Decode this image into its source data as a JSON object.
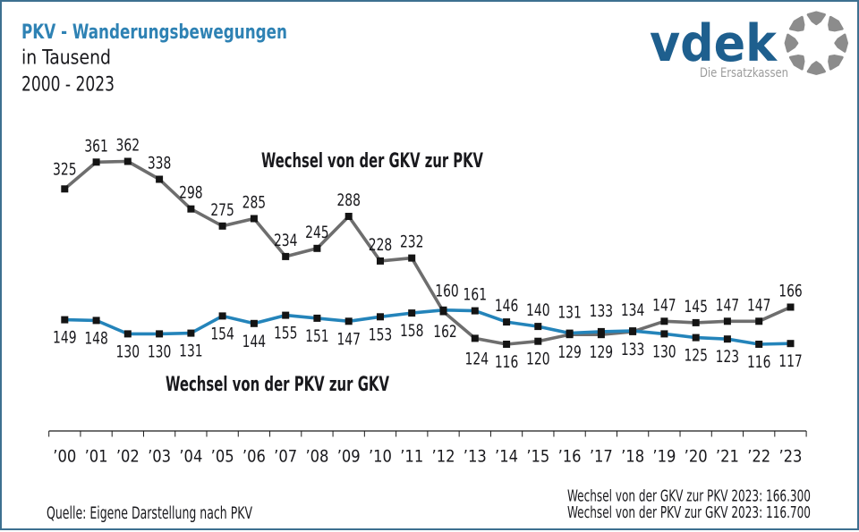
{
  "header": {
    "title": "PKV - Wanderungsbewegungen",
    "subtitle": "in Tausend",
    "period": "2000 - 2023"
  },
  "logo": {
    "wordmark": "vdek",
    "tagline": "Die Ersatzkassen"
  },
  "chart_data": {
    "type": "line",
    "title": "PKV - Wanderungsbewegungen",
    "unit": "in Tausend",
    "period": "2000 - 2023",
    "categories": [
      "’00",
      "’01",
      "’02",
      "’03",
      "’04",
      "’05",
      "’06",
      "’07",
      "’08",
      "’09",
      "’10",
      "’11",
      "’12",
      "’13",
      "’14",
      "’15",
      "’16",
      "’17",
      "’18",
      "’19",
      "’20",
      "’21",
      "’22",
      "’23"
    ],
    "series": [
      {
        "name": "Wechsel von der GKV zur PKV",
        "color": "#6e6e6e",
        "values": [
          325,
          361,
          362,
          338,
          298,
          275,
          285,
          234,
          245,
          288,
          228,
          232,
          160,
          124,
          116,
          120,
          129,
          129,
          133,
          147,
          145,
          147,
          147,
          166
        ]
      },
      {
        "name": "Wechsel von der PKV zur GKV",
        "color": "#2484ba",
        "values": [
          149,
          148,
          130,
          130,
          131,
          154,
          144,
          155,
          151,
          147,
          153,
          158,
          162,
          161,
          146,
          140,
          131,
          133,
          134,
          130,
          125,
          123,
          116,
          117
        ]
      }
    ],
    "ylim": [
      0,
      400
    ],
    "xlabel": "",
    "ylabel": "",
    "grid": false,
    "legend": "inline-labels",
    "marker": "square",
    "data_labels": true
  },
  "footer": {
    "source": "Quelle: Eigene Darstellung nach PKV",
    "note_gkv_pkv": "Wechsel von der GKV zur PKV 2023: 166.300",
    "note_pkv_gkv": "Wechsel von der PKV zur GKV 2023: 116.700"
  },
  "colors": {
    "title_blue": "#2e82b4",
    "text": "#19191d",
    "axis": "#1a1a1a",
    "marker": "#141414",
    "logo_blue": "#1e5f8e",
    "logo_gray": "#8c8c8c",
    "tagline_gray": "#9c9c9c",
    "border": "#3d7090"
  }
}
